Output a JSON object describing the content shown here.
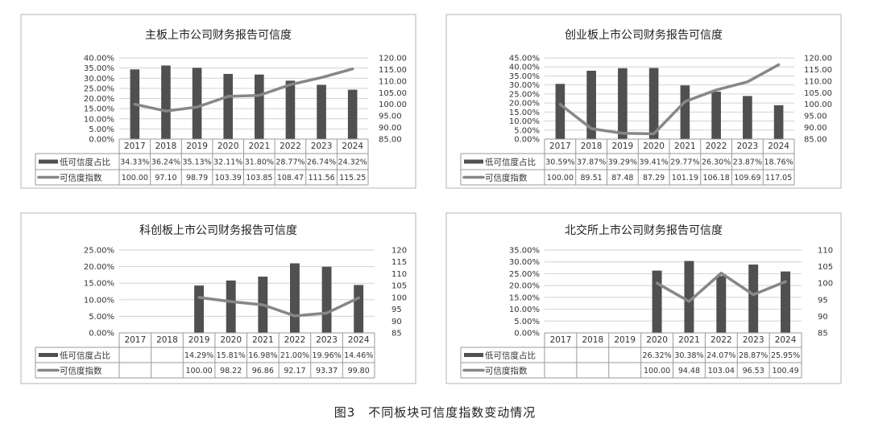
{
  "figure": {
    "caption": "图3　不同板块可信度指数变动情况"
  },
  "styling": {
    "bar_color": "#505050",
    "line_color": "#878787",
    "grid_color": "#d2d2d2",
    "frame_color": "#b4b4b4"
  },
  "chart_data": [
    {
      "type": "bar+line",
      "title": "主板上市公司财务报告可信度",
      "categories": [
        "2017",
        "2018",
        "2019",
        "2020",
        "2021",
        "2022",
        "2023",
        "2024"
      ],
      "series": [
        {
          "name": "低可信度占比",
          "kind": "bar",
          "axis": "left",
          "values": [
            34.33,
            36.24,
            35.13,
            32.11,
            31.8,
            28.77,
            26.74,
            24.32
          ],
          "labels": [
            "34.33%",
            "36.24%",
            "35.13%",
            "32.11%",
            "31.80%",
            "28.77%",
            "26.74%",
            "24.32%"
          ]
        },
        {
          "name": "可信度指数",
          "kind": "line",
          "axis": "right",
          "values": [
            100.0,
            97.1,
            98.79,
            103.39,
            103.85,
            108.47,
            111.56,
            115.25
          ],
          "labels": [
            "100.00",
            "97.10",
            "98.79",
            "103.39",
            "103.85",
            "108.47",
            "111.56",
            "115.25"
          ]
        }
      ],
      "y_left": {
        "range": [
          0,
          40
        ],
        "ticks": [
          "40.00%",
          "35.00%",
          "30.00%",
          "25.00%",
          "20.00%",
          "15.00%",
          "10.00%",
          "5.00%",
          "0.00%"
        ]
      },
      "y_right": {
        "range": [
          85,
          120
        ],
        "ticks": [
          "120.00",
          "115.00",
          "110.00",
          "105.00",
          "100.00",
          "95.00",
          "90.00",
          "85.00"
        ]
      },
      "grid": true,
      "legend": "data-table"
    },
    {
      "type": "bar+line",
      "title": "创业板上市公司财务报告可信度",
      "categories": [
        "2017",
        "2018",
        "2019",
        "2020",
        "2021",
        "2022",
        "2023",
        "2024"
      ],
      "series": [
        {
          "name": "低可信度占比",
          "kind": "bar",
          "axis": "left",
          "values": [
            30.59,
            37.87,
            39.29,
            39.41,
            29.77,
            26.3,
            23.87,
            18.76
          ],
          "labels": [
            "30.59%",
            "37.87%",
            "39.29%",
            "39.41%",
            "29.77%",
            "26.30%",
            "23.87%",
            "18.76%"
          ]
        },
        {
          "name": "可信度指数",
          "kind": "line",
          "axis": "right",
          "values": [
            100.0,
            89.51,
            87.48,
            87.29,
            101.19,
            106.18,
            109.69,
            117.05
          ],
          "labels": [
            "100.00",
            "89.51",
            "87.48",
            "87.29",
            "101.19",
            "106.18",
            "109.69",
            "117.05"
          ]
        }
      ],
      "y_left": {
        "range": [
          0,
          45
        ],
        "ticks": [
          "45.00%",
          "40.00%",
          "35.00%",
          "30.00%",
          "25.00%",
          "20.00%",
          "15.00%",
          "10.00%",
          "5.00%",
          "0.00%"
        ]
      },
      "y_right": {
        "range": [
          85,
          120
        ],
        "ticks": [
          "120.00",
          "115.00",
          "110.00",
          "105.00",
          "100.00",
          "95.00",
          "90.00",
          "85.00"
        ]
      },
      "grid": true,
      "legend": "data-table"
    },
    {
      "type": "bar+line",
      "title": "科创板上市公司财务报告可信度",
      "categories": [
        "2017",
        "2018",
        "2019",
        "2020",
        "2021",
        "2022",
        "2023",
        "2024"
      ],
      "series": [
        {
          "name": "低可信度占比",
          "kind": "bar",
          "axis": "left",
          "values": [
            null,
            null,
            14.29,
            15.81,
            16.98,
            21.0,
            19.96,
            14.46
          ],
          "labels": [
            "",
            "",
            "14.29%",
            "15.81%",
            "16.98%",
            "21.00%",
            "19.96%",
            "14.46%"
          ]
        },
        {
          "name": "可信度指数",
          "kind": "line",
          "axis": "right",
          "values": [
            null,
            null,
            100.0,
            98.22,
            96.86,
            92.17,
            93.37,
            99.8
          ],
          "labels": [
            "",
            "",
            "100.00",
            "98.22",
            "96.86",
            "92.17",
            "93.37",
            "99.80"
          ]
        }
      ],
      "y_left": {
        "range": [
          0,
          25
        ],
        "ticks": [
          "25.00%",
          "20.00%",
          "15.00%",
          "10.00%",
          "5.00%",
          "0.00%"
        ]
      },
      "y_right": {
        "range": [
          85,
          120
        ],
        "ticks": [
          "120",
          "115",
          "110",
          "105",
          "100",
          "95",
          "90",
          "85"
        ]
      },
      "grid": true,
      "legend": "data-table"
    },
    {
      "type": "bar+line",
      "title": "北交所上市公司财务报告可信度",
      "categories": [
        "2017",
        "2018",
        "2019",
        "2020",
        "2021",
        "2022",
        "2023",
        "2024"
      ],
      "series": [
        {
          "name": "低可信度占比",
          "kind": "bar",
          "axis": "left",
          "values": [
            null,
            null,
            null,
            26.32,
            30.38,
            24.07,
            28.87,
            25.95
          ],
          "labels": [
            "",
            "",
            "",
            "26.32%",
            "30.38%",
            "24.07%",
            "28.87%",
            "25.95%"
          ]
        },
        {
          "name": "可信度指数",
          "kind": "line",
          "axis": "right",
          "values": [
            null,
            null,
            null,
            100.0,
            94.48,
            103.04,
            96.53,
            100.49
          ],
          "labels": [
            "",
            "",
            "",
            "100.00",
            "94.48",
            "103.04",
            "96.53",
            "100.49"
          ]
        }
      ],
      "y_left": {
        "range": [
          0,
          35
        ],
        "ticks": [
          "35.00%",
          "30.00%",
          "25.00%",
          "20.00%",
          "15.00%",
          "10.00%",
          "5.00%",
          "0.00%"
        ]
      },
      "y_right": {
        "range": [
          85,
          110
        ],
        "ticks": [
          "110",
          "105",
          "100",
          "95",
          "90",
          "85"
        ]
      },
      "grid": true,
      "legend": "data-table"
    }
  ]
}
